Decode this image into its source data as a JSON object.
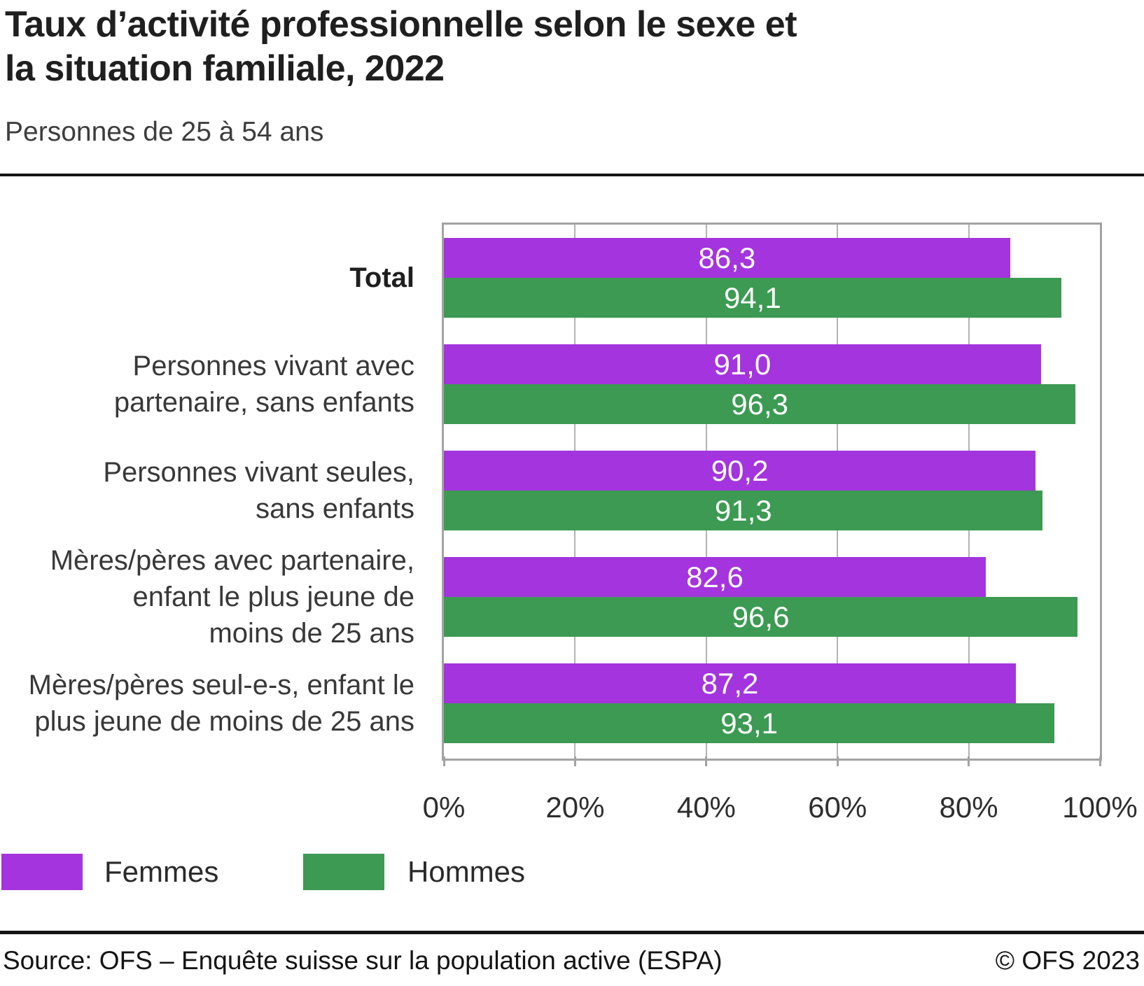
{
  "header": {
    "title_lines": [
      "Taux d’activité professionnelle selon le sexe et",
      "la situation familiale, 2022"
    ],
    "subtitle": "Personnes de 25 à 54 ans"
  },
  "chart_data": {
    "type": "bar",
    "orientation": "horizontal",
    "title": "Taux d’activité professionnelle selon le sexe et la situation familiale, 2022",
    "subtitle": "Personnes de 25 à 54 ans",
    "categories": [
      "Total",
      "Personnes vivant avec partenaire, sans enfants",
      "Personnes vivant seules, sans enfants",
      "Mères/pères avec partenaire, enfant le plus jeune de moins de 25 ans",
      "Mères/pères seul-e-s, enfant le plus jeune de moins de 25 ans"
    ],
    "category_lines": [
      [
        "Total"
      ],
      [
        "Personnes vivant avec",
        "partenaire, sans enfants"
      ],
      [
        "Personnes vivant seules,",
        "sans enfants"
      ],
      [
        "Mères/pères avec partenaire,",
        "enfant le plus jeune de",
        "moins de 25 ans"
      ],
      [
        "Mères/pères seul-e-s, enfant le",
        "plus jeune de moins de 25 ans"
      ]
    ],
    "series": [
      {
        "name": "Femmes",
        "color": "#a434dd",
        "values": [
          86.3,
          91.0,
          90.2,
          82.6,
          87.2
        ],
        "labels": [
          "86,3",
          "91,0",
          "90,2",
          "82,6",
          "87,2"
        ]
      },
      {
        "name": "Hommes",
        "color": "#3c9a52",
        "values": [
          94.1,
          96.3,
          91.3,
          96.6,
          93.1
        ],
        "labels": [
          "94,1",
          "96,3",
          "91,3",
          "96,6",
          "93,1"
        ]
      }
    ],
    "xlim": [
      0,
      100
    ],
    "x_tick_labels": [
      "0%",
      "20%",
      "40%",
      "60%",
      "80%",
      "100%"
    ],
    "grid": "vertical gridlines every 20%",
    "legend_position": "bottom-left",
    "value_label_color": "#ffffff"
  },
  "footer": {
    "source": "Source: OFS – Enquête suisse sur la population active (ESPA)",
    "copyright": "© OFS 2023"
  }
}
